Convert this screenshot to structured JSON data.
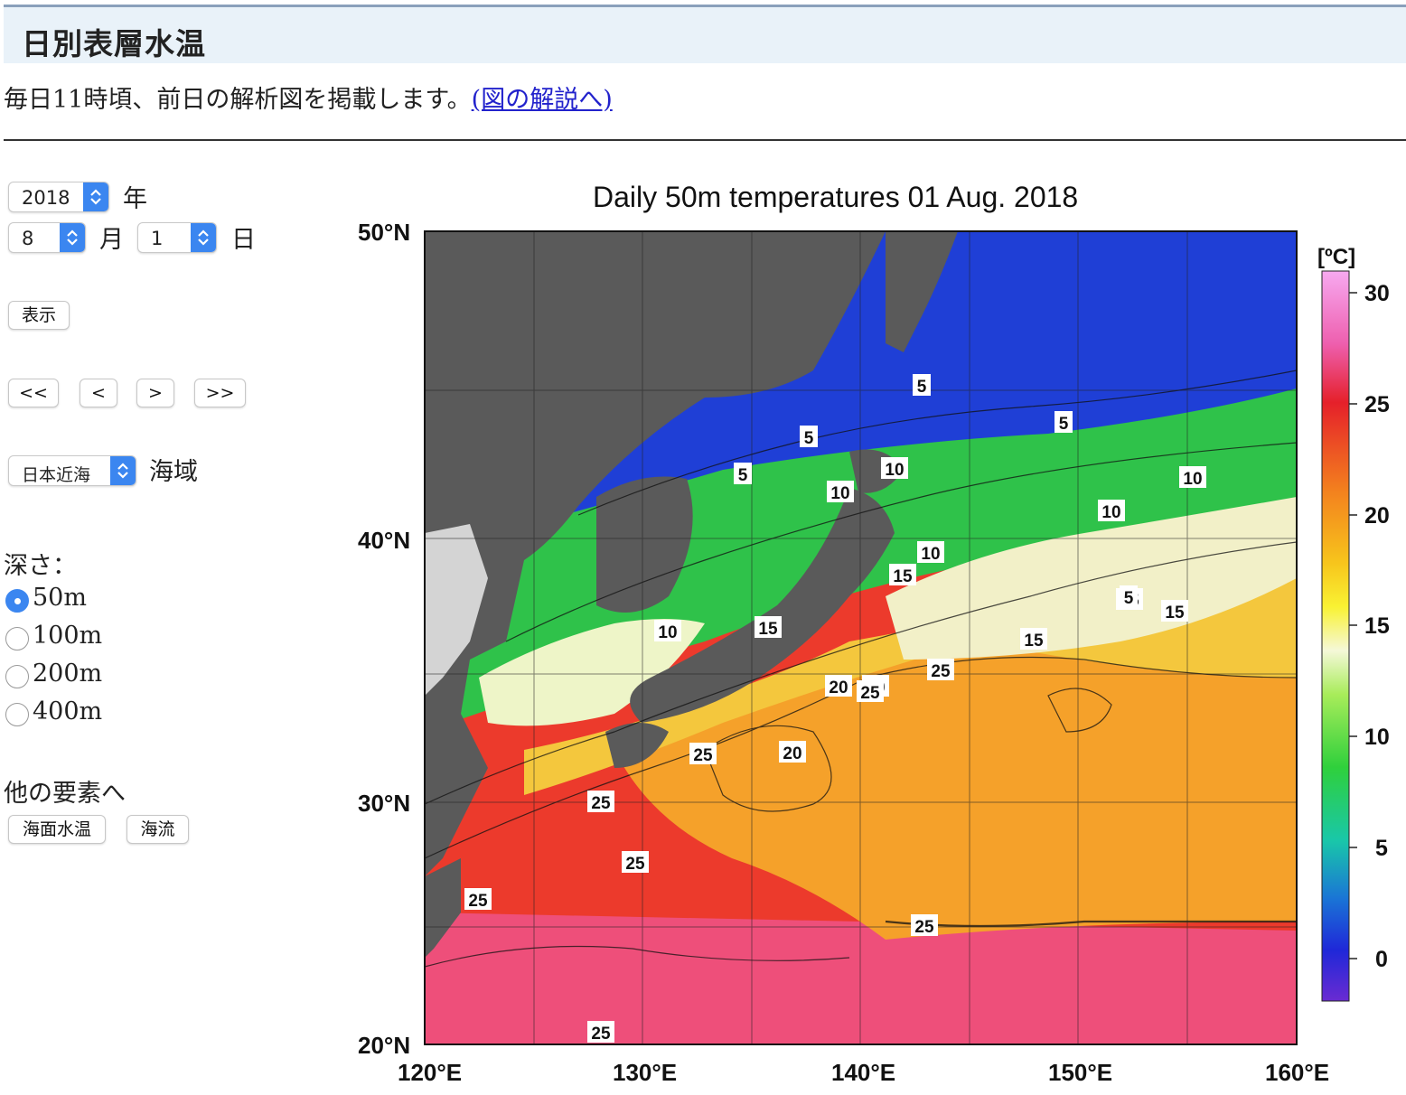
{
  "header": {
    "title": "日別表層水温"
  },
  "intro": {
    "text": "毎日11時頃、前日の解析図を掲載します。",
    "link": "(図の解説へ)"
  },
  "date": {
    "year": "2018",
    "year_label": "年",
    "month": "8",
    "month_label": "月",
    "day": "1",
    "day_label": "日"
  },
  "buttons": {
    "show": "表示",
    "first": "<<",
    "prev": "<",
    "next": ">",
    "last": ">>"
  },
  "area": {
    "value": "日本近海",
    "label": "海域"
  },
  "depth": {
    "title": "深さ：",
    "options": [
      "50m",
      "100m",
      "200m",
      "400m"
    ],
    "selected": "50m"
  },
  "other": {
    "title": "他の要素へ",
    "sst": "海面水温",
    "current": "海流"
  },
  "map": {
    "title": "Daily 50m temperatures 01 Aug. 2018",
    "lat_labels": [
      "50°N",
      "40°N",
      "30°N",
      "20°N"
    ],
    "lon_labels": [
      "120°E",
      "130°E",
      "140°E",
      "150°E",
      "160°E"
    ],
    "colorbar": {
      "unit": "[ºC]",
      "ticks": [
        "30",
        "25",
        "20",
        "15",
        "10",
        "5",
        "0"
      ]
    },
    "contour_labels": [
      "5",
      "5",
      "5",
      "5",
      "10",
      "10",
      "10",
      "10",
      "10",
      "10",
      "15",
      "15",
      "15",
      "15",
      "15",
      "5",
      "20",
      "20",
      "20",
      "25",
      "25",
      "25",
      "25",
      "25",
      "25",
      "25",
      "25"
    ],
    "colors": {
      "land": "#5a5a5a",
      "cold": "#1a2ad0",
      "mid": "#2bd13a",
      "warm": "#f5a623",
      "hot": "#e8262b"
    }
  }
}
